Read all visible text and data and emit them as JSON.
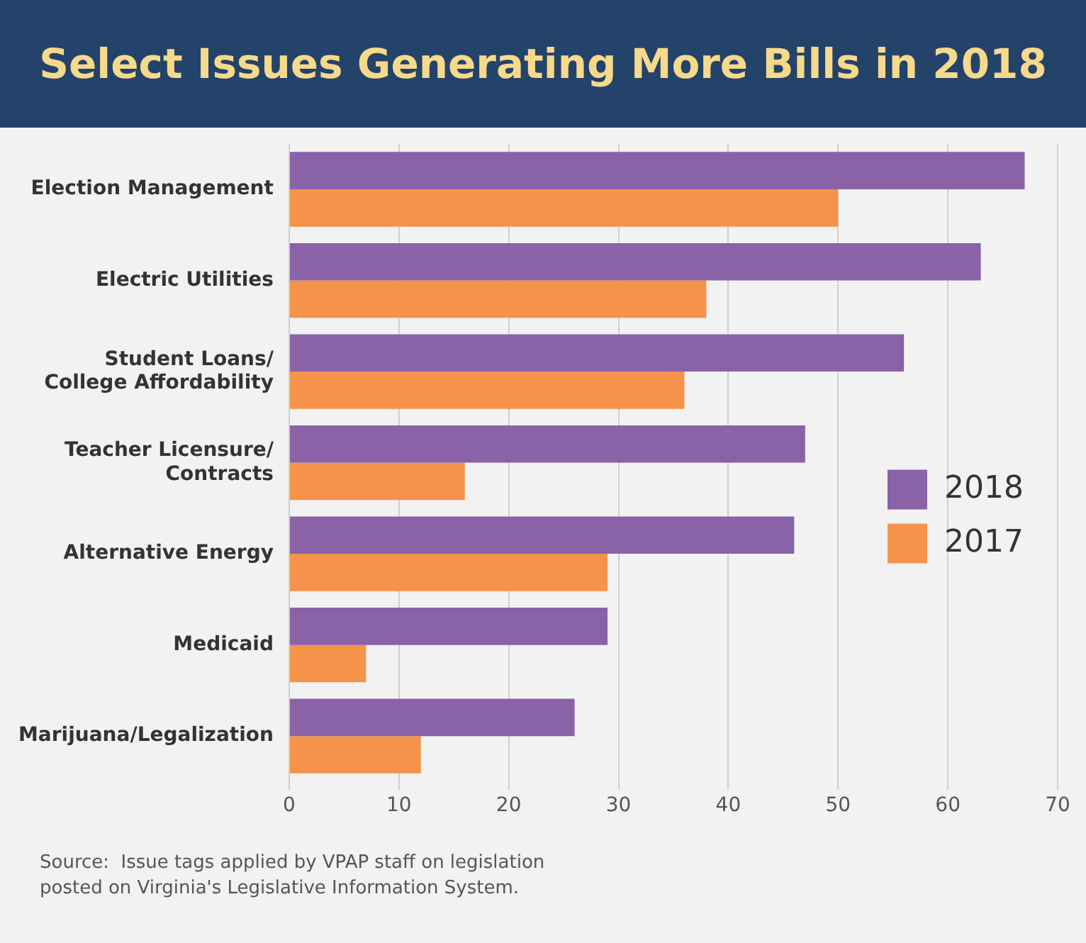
{
  "chart_data": {
    "type": "bar",
    "orientation": "horizontal",
    "title": "Select Issues Generating More Bills in 2018",
    "categories": [
      "Election Management",
      "Electric Utilities",
      "Student Loans/\nCollege Affordability",
      "Teacher Licensure/\nContracts",
      "Alternative Energy",
      "Medicaid",
      "Marijuana/Legalization"
    ],
    "series": [
      {
        "name": "2018",
        "color": "#8a62a8",
        "values": [
          67,
          63,
          56,
          47,
          46,
          29,
          26
        ]
      },
      {
        "name": "2017",
        "color": "#f5934a",
        "values": [
          50,
          38,
          36,
          16,
          29,
          7,
          12
        ]
      }
    ],
    "xlim": [
      0,
      70
    ],
    "xticks": [
      0,
      10,
      20,
      30,
      40,
      50,
      60,
      70
    ],
    "grid": "x",
    "legend": "right",
    "annotations": [
      "Source:  Issue tags applied by VPAP staff on legislation\nposted on Virginia's Legislative Information System."
    ]
  }
}
